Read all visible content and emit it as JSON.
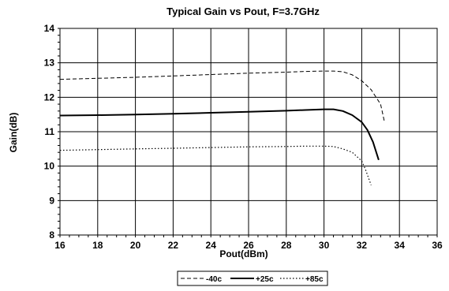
{
  "chart_data": {
    "type": "line",
    "title": "Typical Gain vs Pout, F=3.7GHz",
    "xlabel": "Pout(dBm)",
    "ylabel": "Gain(dB)",
    "xlim": [
      16,
      36
    ],
    "ylim": [
      8,
      14
    ],
    "xticks": [
      16,
      18,
      20,
      22,
      24,
      26,
      28,
      30,
      32,
      34,
      36
    ],
    "yticks": [
      8,
      9,
      10,
      11,
      12,
      13,
      14
    ],
    "grid": true,
    "legend_position": "bottom-center",
    "series": [
      {
        "name": "-40c",
        "style": "dashed",
        "x": [
          16,
          18,
          20,
          22,
          24,
          26,
          28,
          29,
          30,
          30.5,
          31,
          31.5,
          32,
          32.5,
          33,
          33.2
        ],
        "y": [
          12.52,
          12.55,
          12.58,
          12.62,
          12.66,
          12.7,
          12.73,
          12.75,
          12.76,
          12.76,
          12.74,
          12.65,
          12.48,
          12.22,
          11.8,
          11.3
        ]
      },
      {
        "name": "+25c",
        "style": "solid",
        "x": [
          16,
          18,
          20,
          22,
          24,
          26,
          28,
          29,
          30,
          30.5,
          31,
          31.5,
          32,
          32.3,
          32.6,
          32.9
        ],
        "y": [
          11.47,
          11.48,
          11.5,
          11.52,
          11.55,
          11.58,
          11.61,
          11.63,
          11.65,
          11.65,
          11.6,
          11.48,
          11.28,
          11.05,
          10.7,
          10.18
        ]
      },
      {
        "name": "+85c",
        "style": "dotted",
        "x": [
          16,
          18,
          20,
          22,
          24,
          26,
          28,
          29,
          30,
          30.5,
          31,
          31.5,
          32,
          32.2,
          32.5
        ],
        "y": [
          10.46,
          10.48,
          10.5,
          10.52,
          10.54,
          10.56,
          10.57,
          10.58,
          10.58,
          10.57,
          10.5,
          10.4,
          10.15,
          9.9,
          9.45
        ]
      }
    ]
  }
}
